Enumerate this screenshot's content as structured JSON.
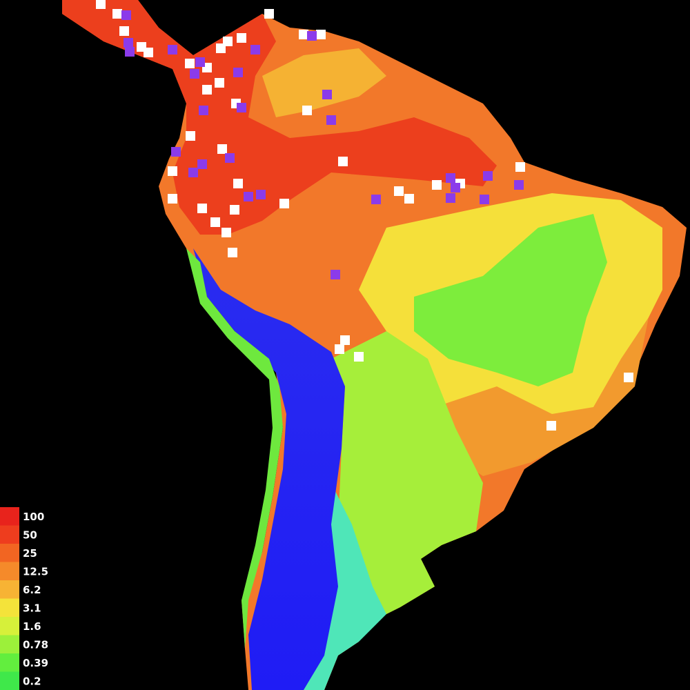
{
  "legend": {
    "items": [
      {
        "value": 100,
        "color": "#e8231c"
      },
      {
        "value": 50,
        "color": "#ee3d1e"
      },
      {
        "value": 25,
        "color": "#f26522"
      },
      {
        "value": 12.5,
        "color": "#f58a2a"
      },
      {
        "value": 6.2,
        "color": "#f7b334"
      },
      {
        "value": 3.1,
        "color": "#f4e33a"
      },
      {
        "value": 1.6,
        "color": "#d6f03a"
      },
      {
        "value": 0.78,
        "color": "#9cf03a"
      },
      {
        "value": 0.39,
        "color": "#62ee3e"
      },
      {
        "value": 0.2,
        "color": "#3fe84a"
      }
    ]
  }
}
